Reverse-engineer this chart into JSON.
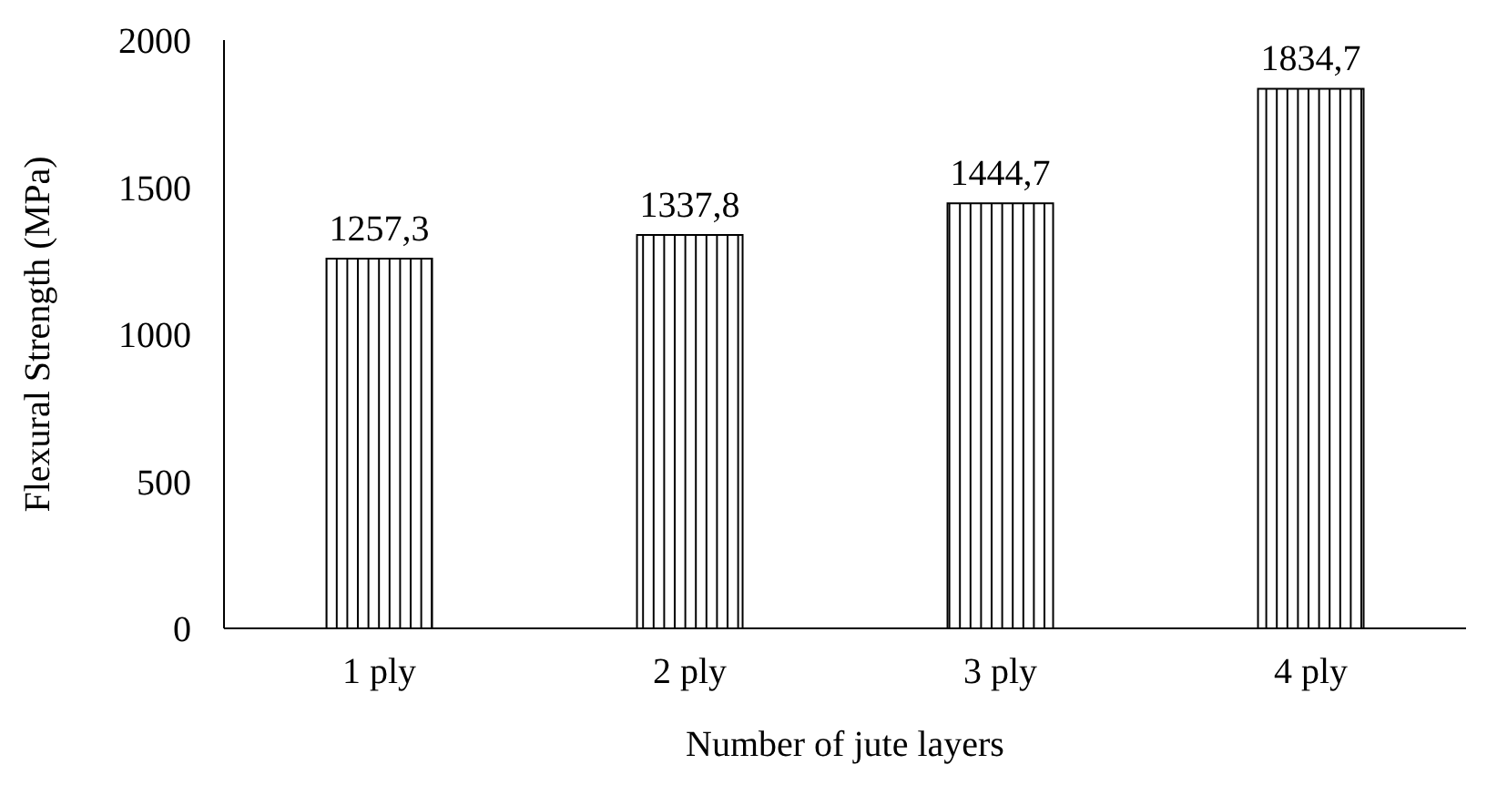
{
  "chart_data": {
    "type": "bar",
    "xlabel": "Number of jute layers",
    "ylabel": "Flexural Strength (MPa)",
    "categories": [
      "1 ply",
      "2 ply",
      "3 ply",
      "4 ply"
    ],
    "values": [
      1257.3,
      1337.8,
      1444.7,
      1834.7
    ],
    "value_labels": [
      "1257,3",
      "1337,8",
      "1444,7",
      "1834,7"
    ],
    "color": "#000000",
    "ylim": [
      0,
      2000
    ],
    "yticks": [
      0,
      500,
      1000,
      1500,
      2000
    ],
    "grid": false,
    "legend": false
  }
}
